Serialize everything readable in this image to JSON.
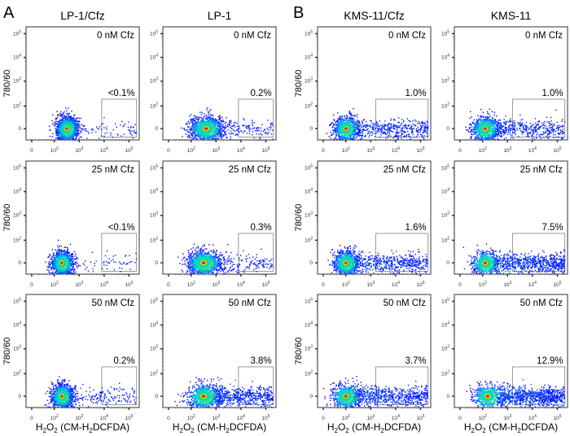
{
  "chart_data": {
    "type": "scatter",
    "subtype": "flow-cytometry-density-plot-grid",
    "figure_panels": [
      {
        "letter": "A",
        "columns": [
          {
            "title": "LP-1/Cfz",
            "plots": [
              {
                "condition": "0 nM Cfz",
                "gate_percent": "<0.1%",
                "population": {
                  "x_center_log": 2.5,
                  "spread": 0.4,
                  "tail": 0.05
                }
              },
              {
                "condition": "25 nM Cfz",
                "gate_percent": "<0.1%",
                "population": {
                  "x_center_log": 2.3,
                  "spread": 0.4,
                  "tail": 0.05
                }
              },
              {
                "condition": "50 nM Cfz",
                "gate_percent": "0.2%",
                "population": {
                  "x_center_log": 2.3,
                  "spread": 0.4,
                  "tail": 0.12
                }
              }
            ]
          },
          {
            "title": "LP-1",
            "plots": [
              {
                "condition": "0 nM Cfz",
                "gate_percent": "0.2%",
                "population": {
                  "x_center_log": 2.6,
                  "spread": 0.6,
                  "tail": 0.1
                }
              },
              {
                "condition": "25 nM Cfz",
                "gate_percent": "0.3%",
                "population": {
                  "x_center_log": 2.5,
                  "spread": 0.6,
                  "tail": 0.12
                }
              },
              {
                "condition": "50 nM Cfz",
                "gate_percent": "3.8%",
                "population": {
                  "x_center_log": 2.5,
                  "spread": 0.6,
                  "tail": 0.35
                }
              }
            ]
          }
        ]
      },
      {
        "letter": "B",
        "columns": [
          {
            "title": "KMS-11/Cfz",
            "plots": [
              {
                "condition": "0 nM Cfz",
                "gate_percent": "1.0%",
                "population": {
                  "x_center_log": 2.0,
                  "spread": 0.45,
                  "tail": 0.3
                }
              },
              {
                "condition": "25 nM Cfz",
                "gate_percent": "1.6%",
                "population": {
                  "x_center_log": 2.0,
                  "spread": 0.45,
                  "tail": 0.35
                }
              },
              {
                "condition": "50 nM Cfz",
                "gate_percent": "3.7%",
                "population": {
                  "x_center_log": 2.0,
                  "spread": 0.5,
                  "tail": 0.45
                }
              }
            ]
          },
          {
            "title": "KMS-11",
            "plots": [
              {
                "condition": "0 nM Cfz",
                "gate_percent": "1.0%",
                "population": {
                  "x_center_log": 2.1,
                  "spread": 0.5,
                  "tail": 0.3
                }
              },
              {
                "condition": "25 nM Cfz",
                "gate_percent": "7.5%",
                "population": {
                  "x_center_log": 2.1,
                  "spread": 0.5,
                  "tail": 0.5
                }
              },
              {
                "condition": "50 nM Cfz",
                "gate_percent": "12.9%",
                "population": {
                  "x_center_log": 2.2,
                  "spread": 0.55,
                  "tail": 0.6
                }
              }
            ]
          }
        ]
      }
    ],
    "xlabel": "H2O2 (CM-H2DCFDA)",
    "xlabel_parts": {
      "pre": "H",
      "sub1": "2",
      "mid": "O",
      "sub2": "2",
      "post": " (CM-H",
      "sub3": "2",
      "end": "DCFDA)"
    },
    "ylabel": "780/60",
    "x_ticks": [
      "0",
      "10^2",
      "10^3",
      "10^4",
      "10^5"
    ],
    "y_ticks": [
      "0",
      "10^2",
      "10^3",
      "10^4",
      "10^5"
    ],
    "x_scale": "biexponential",
    "y_scale": "biexponential",
    "gate": {
      "x_range_log_A": [
        3.9,
        5.3
      ],
      "x_range_log_B": [
        3.2,
        5.3
      ],
      "y_range": "0 to ~10^2.3"
    },
    "colormap": [
      "#0000ff",
      "#00c8ff",
      "#00ff80",
      "#ffff00",
      "#ff0000"
    ]
  }
}
